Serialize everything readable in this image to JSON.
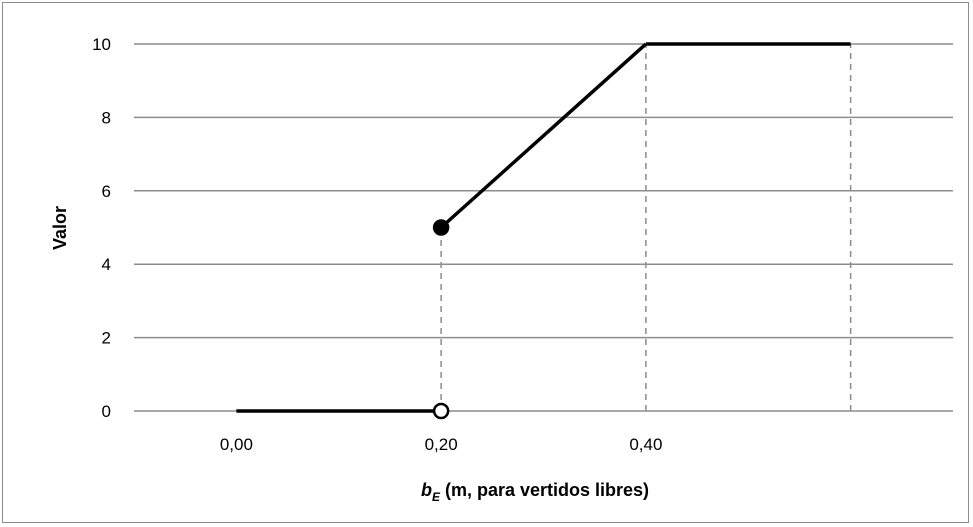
{
  "chart_data": {
    "type": "line",
    "title": "",
    "ylabel": "Valor",
    "xlabel": {
      "symbol": "b",
      "subscript": "E",
      "text": " (m, para vertidos libres)"
    },
    "ylim": [
      0,
      10
    ],
    "yticks": [
      0,
      2,
      4,
      6,
      8,
      10
    ],
    "xlim": [
      -0.1,
      0.7
    ],
    "xticks": [
      {
        "value": 0.0,
        "label": "0,00"
      },
      {
        "value": 0.2,
        "label": "0,20"
      },
      {
        "value": 0.4,
        "label": "0,40"
      }
    ],
    "grid": "horizontal",
    "legend": "none",
    "segments": [
      {
        "name": "low",
        "x": [
          0.0,
          0.2
        ],
        "y": [
          0,
          0
        ]
      },
      {
        "name": "ramp",
        "x": [
          0.2,
          0.4
        ],
        "y": [
          5,
          10
        ]
      },
      {
        "name": "high",
        "x": [
          0.4,
          0.6
        ],
        "y": [
          10,
          10
        ]
      }
    ],
    "points": [
      {
        "x": 0.2,
        "y": 5,
        "style": "filled"
      },
      {
        "x": 0.2,
        "y": 0,
        "style": "open"
      }
    ],
    "reference_lines": [
      {
        "x": 0.2,
        "y_from": 0,
        "y_to": 5
      },
      {
        "x": 0.4,
        "y_from": 0,
        "y_to": 10
      },
      {
        "x": 0.6,
        "y_from": 0,
        "y_to": 10
      }
    ],
    "colors": {
      "line": "#000000",
      "grid": "#8c8c8c",
      "reference": "#8c8c8c",
      "frame": "#8c8c8c"
    }
  }
}
